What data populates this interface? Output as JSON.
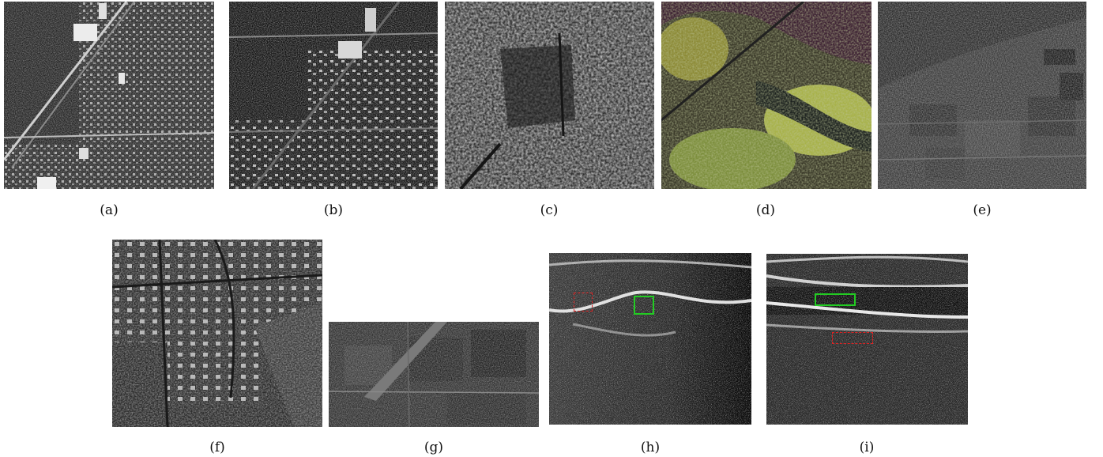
{
  "figure": {
    "panels": [
      {
        "id": "a",
        "caption": "(a)",
        "kind": "sar-urban-grid"
      },
      {
        "id": "b",
        "caption": "(b)",
        "kind": "sar-urban-blocks"
      },
      {
        "id": "c",
        "caption": "(c)",
        "kind": "sar-forest"
      },
      {
        "id": "d",
        "caption": "(d)",
        "kind": "color-sar-vegetation"
      },
      {
        "id": "e",
        "caption": "(e)",
        "kind": "sar-farmland"
      },
      {
        "id": "f",
        "caption": "(f)",
        "kind": "sar-suburban"
      },
      {
        "id": "g",
        "caption": "(g)",
        "kind": "sar-fields-runway"
      },
      {
        "id": "h",
        "caption": "(h)",
        "kind": "ultrasound"
      },
      {
        "id": "i",
        "caption": "(i)",
        "kind": "ultrasound"
      }
    ],
    "annotation_colors": {
      "solid_box": "#22cc22",
      "dashed_box": "#dd2222"
    }
  }
}
